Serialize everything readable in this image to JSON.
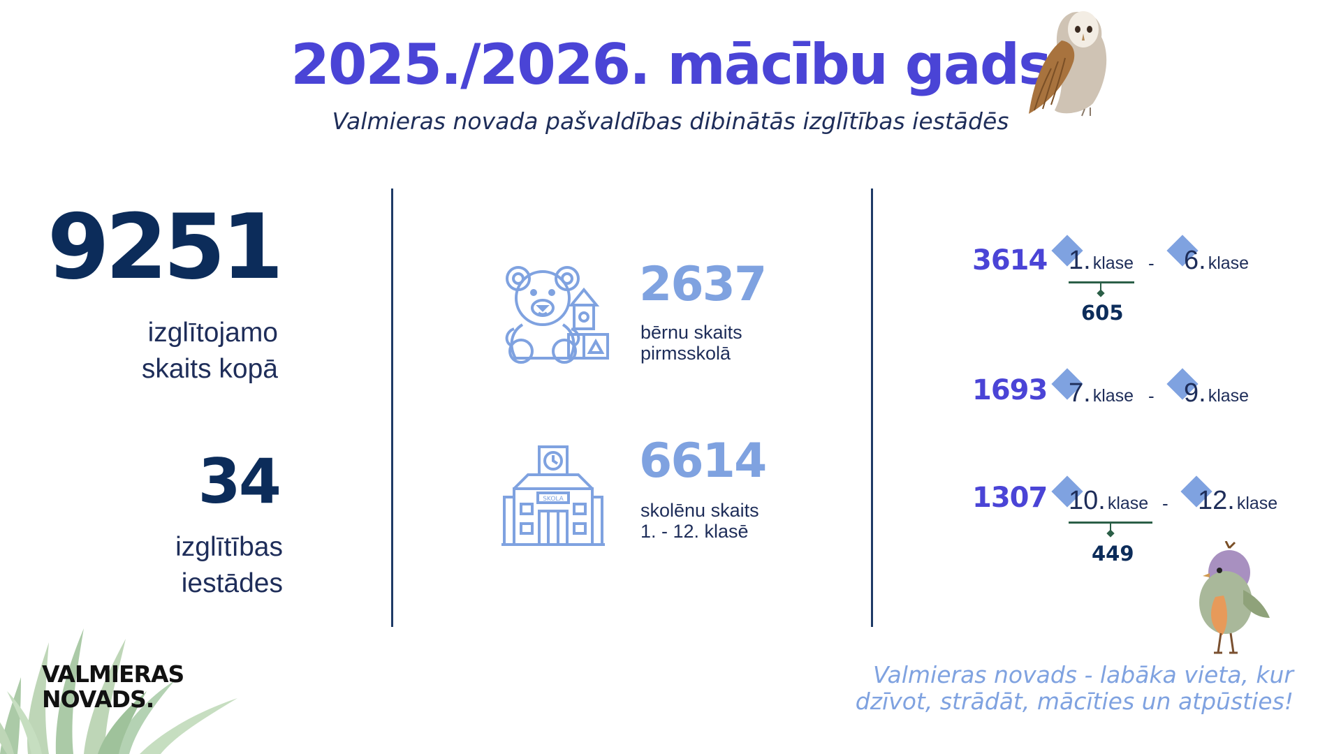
{
  "header": {
    "title": "2025./2026. mācību gads",
    "subtitle": "Valmieras novada pašvaldības dibinātās izglītības iestādēs"
  },
  "totals": {
    "students_total": "9251",
    "students_total_label_line1": "izglītojamo",
    "students_total_label_line2": "skaits kopā",
    "institutions": "34",
    "institutions_label_line1": "izglītības",
    "institutions_label_line2": "iestādes"
  },
  "preschool": {
    "icon": "teddy-bear-icon",
    "count": "2637",
    "label_line1": "bērnu skaits",
    "label_line2": "pirmsskolā"
  },
  "school": {
    "icon": "school-building-icon",
    "building_sign": "SKOLA",
    "count": "6614",
    "label_line1": "skolēnu skaits",
    "label_line2": "1. - 12. klasē"
  },
  "grades": [
    {
      "count": "3614",
      "from": "1.",
      "to": "6.",
      "unit": "klase",
      "separator": "-",
      "sub_count": "605"
    },
    {
      "count": "1693",
      "from": "7.",
      "to": "9.",
      "unit": "klase",
      "separator": "-"
    },
    {
      "count": "1307",
      "from": "10.",
      "to": "12.",
      "unit": "klase",
      "separator": "-",
      "sub_count": "449"
    }
  ],
  "footer": {
    "slogan_line1": "Valmieras novads - labāka vieta, kur",
    "slogan_line2": "dzīvot, strādāt, mācīties un atpūsties!",
    "logo_line1": "VALMIERAS",
    "logo_line2": "NOVADS."
  },
  "colors": {
    "title": "#4a44d6",
    "dark_navy": "#0c2c5a",
    "light_blue": "#7fa2e0",
    "accent_green": "#2b5f47"
  },
  "decorations": [
    "owl-illustration",
    "bird-illustration",
    "grass-illustration"
  ]
}
